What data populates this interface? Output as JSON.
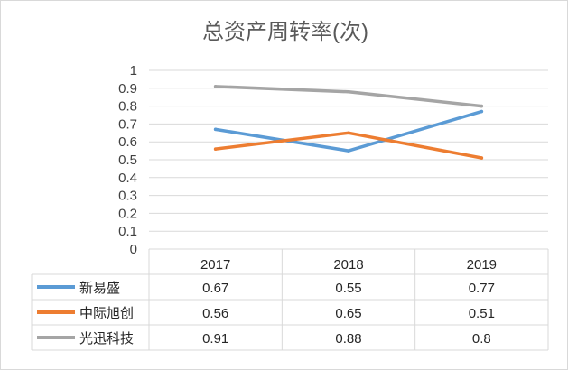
{
  "chart_data": {
    "type": "line",
    "title": "总资产周转率(次)",
    "categories": [
      "2017",
      "2018",
      "2019"
    ],
    "y_ticks": [
      "0",
      "0.1",
      "0.2",
      "0.3",
      "0.4",
      "0.5",
      "0.6",
      "0.7",
      "0.8",
      "0.9",
      "1"
    ],
    "ylim": [
      0,
      1
    ],
    "grid": true,
    "legend": "data-table",
    "series": [
      {
        "name": "新易盛",
        "values": [
          0.67,
          0.55,
          0.77
        ],
        "labels": [
          "0.67",
          "0.55",
          "0.77"
        ],
        "color": "#5b9bd5"
      },
      {
        "name": "中际旭创",
        "values": [
          0.56,
          0.65,
          0.51
        ],
        "labels": [
          "0.56",
          "0.65",
          "0.51"
        ],
        "color": "#ed7d31"
      },
      {
        "name": "光迅科技",
        "values": [
          0.91,
          0.88,
          0.8
        ],
        "labels": [
          "0.91",
          "0.88",
          "0.8"
        ],
        "color": "#a5a5a5"
      }
    ]
  }
}
